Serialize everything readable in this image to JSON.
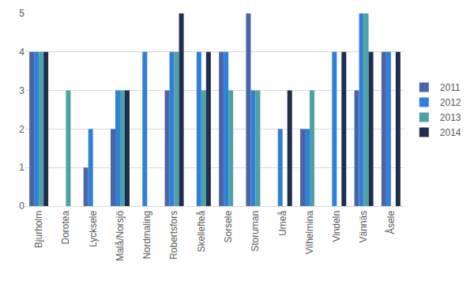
{
  "chart_data": {
    "type": "bar",
    "categories": [
      "Bjurholm",
      "Dorotea",
      "Lycksele",
      "Malå/Norsjö",
      "Nordmaling",
      "Robertsfors",
      "Skellefteå",
      "Sorsele",
      "Storuman",
      "Umeå",
      "Vilhelmina",
      "Vindeln",
      "Vännäs",
      "Åsele"
    ],
    "series": [
      {
        "name": "2011",
        "color": "#4b64a6",
        "values": [
          4,
          null,
          1,
          2,
          null,
          3,
          null,
          4,
          5,
          null,
          2,
          null,
          3,
          4
        ]
      },
      {
        "name": "2012",
        "color": "#2f80d8",
        "values": [
          4,
          null,
          2,
          3,
          4,
          4,
          4,
          4,
          3,
          2,
          2,
          4,
          5,
          4
        ]
      },
      {
        "name": "2013",
        "color": "#4ea2a6",
        "values": [
          4,
          3,
          null,
          3,
          null,
          4,
          3,
          3,
          3,
          null,
          3,
          null,
          5,
          null
        ]
      },
      {
        "name": "2014",
        "color": "#1f2e4e",
        "values": [
          4,
          null,
          null,
          3,
          null,
          5,
          4,
          null,
          null,
          3,
          null,
          4,
          4,
          4
        ]
      }
    ],
    "ylim": [
      0,
      5
    ],
    "yticks": [
      0,
      1,
      2,
      3,
      4,
      5
    ],
    "grid": true,
    "legend": "right"
  }
}
